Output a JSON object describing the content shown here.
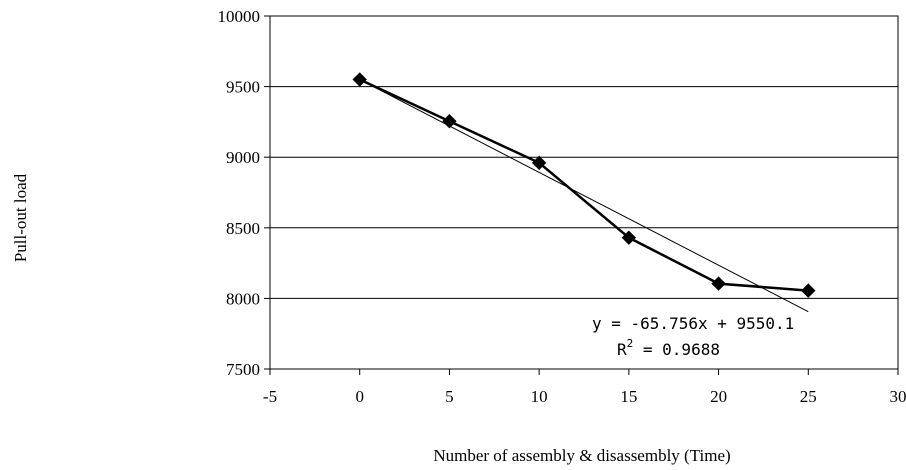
{
  "chart_data": {
    "type": "scatter",
    "ylabel": "Pull-out load",
    "xlabel": "Number of assembly & disassembly (Time)",
    "xlim": [
      -5,
      30
    ],
    "ylim": [
      7500,
      10000
    ],
    "x_ticks": [
      "-5",
      "0",
      "5",
      "10",
      "15",
      "20",
      "25",
      "30"
    ],
    "y_ticks": [
      "7500",
      "8000",
      "8500",
      "9000",
      "9500",
      "10000"
    ],
    "grid": "horizontal",
    "series": [
      {
        "x": [
          0,
          5,
          10,
          15,
          20,
          25
        ],
        "y": [
          9550,
          9255,
          8960,
          8430,
          8105,
          8055
        ],
        "marker": "diamond",
        "line": true,
        "color": "#000000"
      }
    ],
    "trendline": {
      "type": "linear",
      "slope": -65.756,
      "intercept": 9550.1,
      "x_range": [
        0,
        25
      ],
      "equation": "y = -65.756x + 9550.1",
      "r2_prefix": "R",
      "r2_value": " = 0.9688"
    }
  }
}
